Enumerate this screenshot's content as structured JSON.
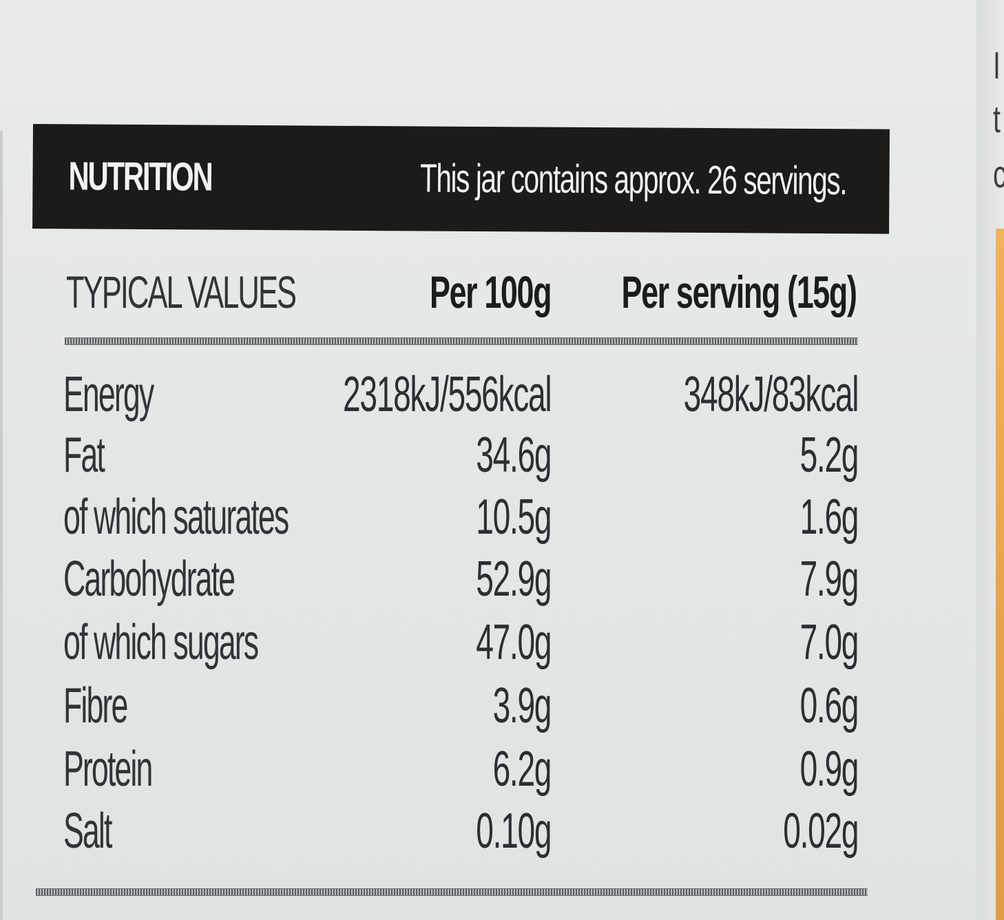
{
  "header": {
    "title": "NUTRITION",
    "servings_note": "This jar contains approx. 26 servings."
  },
  "columns": {
    "typical_values": "TYPICAL VALUES",
    "per_100g": "Per 100g",
    "per_serving": "Per  serving (15g)"
  },
  "rows": [
    {
      "name": "Energy",
      "per_100g": "2318kJ/556kcal",
      "per_serving": "348kJ/83kcal"
    },
    {
      "name": "Fat",
      "per_100g": "34.6g",
      "per_serving": "5.2g"
    },
    {
      "name": "of which saturates",
      "per_100g": "10.5g",
      "per_serving": "1.6g"
    },
    {
      "name": "Carbohydrate",
      "per_100g": "52.9g",
      "per_serving": "7.9g"
    },
    {
      "name": "of which sugars",
      "per_100g": "47.0g",
      "per_serving": "7.0g"
    },
    {
      "name": "Fibre",
      "per_100g": "3.9g",
      "per_serving": "0.6g"
    },
    {
      "name": "Protein",
      "per_100g": "6.2g",
      "per_serving": "0.9g"
    },
    {
      "name": "Salt",
      "per_100g": "0.10g",
      "per_serving": "0.02g"
    }
  ],
  "edge_fragments": [
    "I",
    "t",
    "c"
  ],
  "colors": {
    "header_bg": "#1c1b19",
    "header_text": "#f2f2f0",
    "label_bg": "#e5e8e6",
    "text": "#2a3032",
    "accent": "#e8a248"
  }
}
